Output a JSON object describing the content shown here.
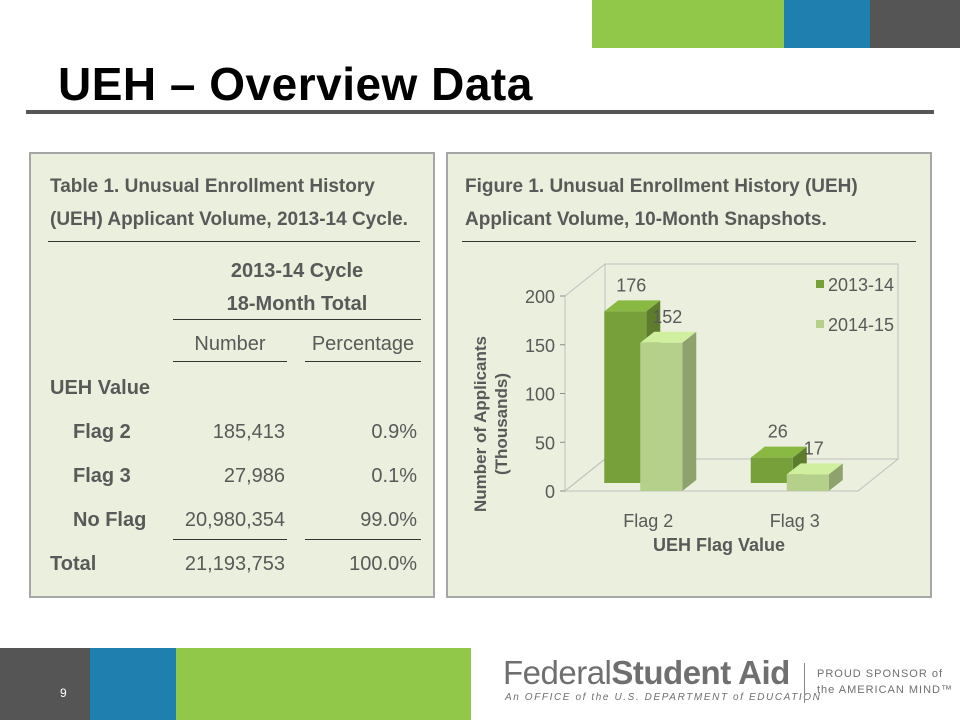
{
  "slide": {
    "title": "UEH – Overview Data",
    "page_number": "9"
  },
  "table": {
    "caption_line1": "Table 1. Unusual Enrollment History",
    "caption_line2": "(UEH) Applicant Volume, 2013-14 Cycle.",
    "group_header_line1": "2013-14 Cycle",
    "group_header_line2": "18-Month Total",
    "col_number": "Number",
    "col_percentage": "Percentage",
    "section_label": "UEH Value",
    "rows": [
      {
        "label": "Flag 2",
        "number": "185,413",
        "percentage": "0.9%"
      },
      {
        "label": "Flag 3",
        "number": "27,986",
        "percentage": "0.1%"
      },
      {
        "label": "No Flag",
        "number": "20,980,354",
        "percentage": "99.0%"
      }
    ],
    "total": {
      "label": "Total",
      "number": "21,193,753",
      "percentage": "100.0%"
    }
  },
  "figure": {
    "caption_line1": "Figure 1. Unusual Enrollment History (UEH)",
    "caption_line2": "Applicant Volume, 10-Month Snapshots."
  },
  "chart_data": {
    "type": "bar",
    "title": "Figure 1. Unusual Enrollment History (UEH) Applicant Volume, 10-Month Snapshots.",
    "categories": [
      "Flag 2",
      "Flag 3"
    ],
    "series": [
      {
        "name": "2013-14",
        "values": [
          176,
          26
        ],
        "color": "#77a03a"
      },
      {
        "name": "2014-15",
        "values": [
          152,
          17
        ],
        "color": "#b5d08a"
      }
    ],
    "xlabel": "UEH Flag Value",
    "ylabel_line1": "Number of Applicants",
    "ylabel_line2": "(Thousands)",
    "ylim": [
      0,
      200
    ],
    "yticks": [
      0,
      50,
      100,
      150,
      200
    ],
    "legend_position": "top-right",
    "three_d": true,
    "grid": false
  },
  "footer": {
    "brand_part1": "Federal",
    "brand_part2": "Student Aid",
    "tagline": "An OFFICE of the U.S. DEPARTMENT of EDUCATION",
    "sponsor_line1": "PROUD SPONSOR of",
    "sponsor_line2": "the AMERICAN MIND™"
  },
  "colors": {
    "green": "#92c84a",
    "blue": "#1f7fae",
    "dark_gray": "#555555",
    "panel_bg": "#eaf0dd"
  }
}
